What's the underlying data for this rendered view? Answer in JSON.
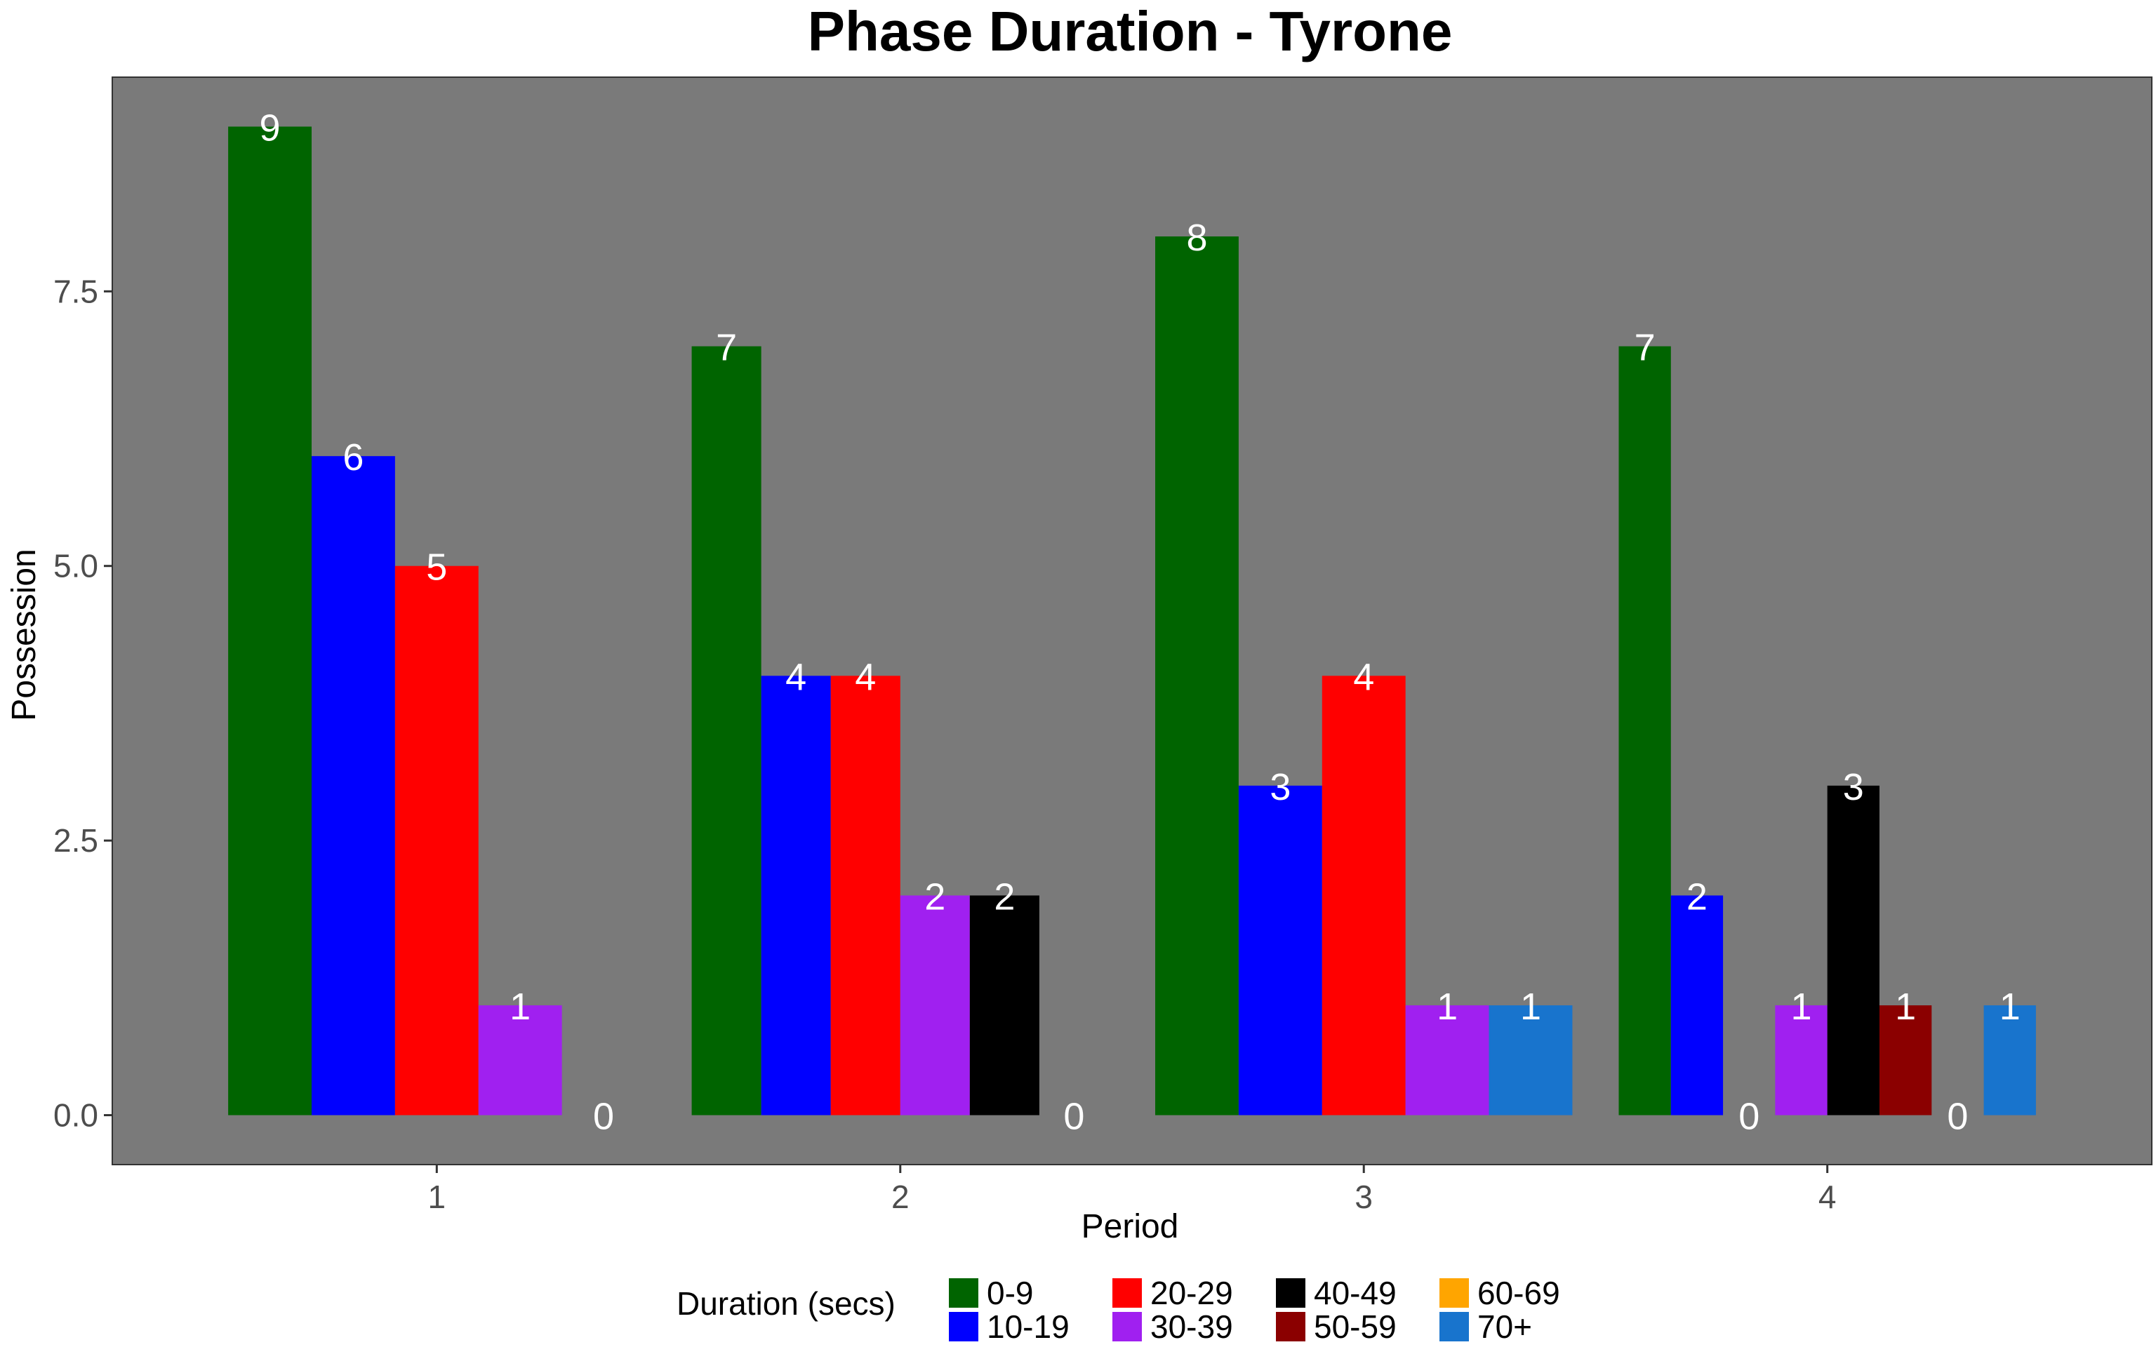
{
  "chart_data": {
    "type": "bar",
    "title": "Phase Duration - Tyrone",
    "xlabel": "Period",
    "ylabel": "Possession",
    "categories": [
      "1",
      "2",
      "3",
      "4"
    ],
    "yticks": [
      "0.0",
      "2.5",
      "5.0",
      "7.5"
    ],
    "ylim": [
      -0.45,
      9.45
    ],
    "grid": false,
    "panel_color": "#7a7a7a",
    "legend_title": "Duration (secs)",
    "legend_position": "bottom",
    "groups": [
      {
        "period": "1",
        "bars": [
          {
            "series": "0-9",
            "value": 9
          },
          {
            "series": "10-19",
            "value": 6
          },
          {
            "series": "20-29",
            "value": 5
          },
          {
            "series": "30-39",
            "value": 1
          },
          {
            "series": "",
            "value": 0
          }
        ]
      },
      {
        "period": "2",
        "bars": [
          {
            "series": "0-9",
            "value": 7
          },
          {
            "series": "10-19",
            "value": 4
          },
          {
            "series": "20-29",
            "value": 4
          },
          {
            "series": "30-39",
            "value": 2
          },
          {
            "series": "40-49",
            "value": 2
          },
          {
            "series": "",
            "value": 0
          }
        ]
      },
      {
        "period": "3",
        "bars": [
          {
            "series": "0-9",
            "value": 8
          },
          {
            "series": "10-19",
            "value": 3
          },
          {
            "series": "20-29",
            "value": 4
          },
          {
            "series": "30-39",
            "value": 1
          },
          {
            "series": "70+",
            "value": 1
          }
        ]
      },
      {
        "period": "4",
        "bars": [
          {
            "series": "0-9",
            "value": 7
          },
          {
            "series": "10-19",
            "value": 2
          },
          {
            "series": "",
            "value": 0
          },
          {
            "series": "30-39",
            "value": 1
          },
          {
            "series": "40-49",
            "value": 3
          },
          {
            "series": "50-59",
            "value": 1
          },
          {
            "series": "",
            "value": 0
          },
          {
            "series": "70+",
            "value": 1
          }
        ]
      }
    ],
    "legend": [
      {
        "name": "0-9",
        "color": "#006400"
      },
      {
        "name": "10-19",
        "color": "#0000ff"
      },
      {
        "name": "20-29",
        "color": "#ff0000"
      },
      {
        "name": "30-39",
        "color": "#a020f0"
      },
      {
        "name": "40-49",
        "color": "#000000"
      },
      {
        "name": "50-59",
        "color": "#8b0000"
      },
      {
        "name": "60-69",
        "color": "#ffa500"
      },
      {
        "name": "70+",
        "color": "#1874cd"
      }
    ]
  }
}
